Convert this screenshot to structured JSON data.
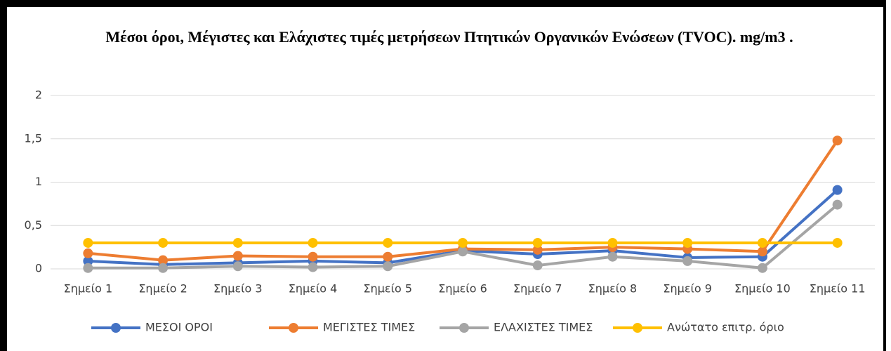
{
  "chart_data": {
    "type": "line",
    "title": "Μέσοι όροι,  Μέγιστες και  Ελάχιστες τιμές μετρήσεων Πτητικών  Οργανικών Ενώσεων  (TVOC). mg/m3 .",
    "categories": [
      "Σημείο 1",
      "Σημείο 2",
      "Σημείο 3",
      "Σημείο 4",
      "Σημείο 5",
      "Σημείο 6",
      "Σημείο 7",
      "Σημείο 8",
      "Σημείο 9",
      "Σημείο 10",
      "Σημείο 11"
    ],
    "series": [
      {
        "name": "ΜΕΣΟΙ ΟΡΟΙ",
        "color": "#4472c4",
        "values": [
          0.09,
          0.05,
          0.07,
          0.09,
          0.07,
          0.21,
          0.17,
          0.21,
          0.13,
          0.14,
          0.91
        ]
      },
      {
        "name": "ΜΕΓΙΣΤΕΣ ΤΙΜΕΣ",
        "color": "#ed7d31",
        "values": [
          0.18,
          0.1,
          0.15,
          0.14,
          0.14,
          0.23,
          0.22,
          0.25,
          0.23,
          0.2,
          1.48
        ]
      },
      {
        "name": "ΕΛΑΧΙΣΤΕΣ ΤΙΜΕΣ",
        "color": "#a5a5a5",
        "values": [
          0.01,
          0.01,
          0.03,
          0.02,
          0.03,
          0.2,
          0.04,
          0.14,
          0.09,
          0.01,
          0.74
        ]
      },
      {
        "name": "Ανώτατο επιτρ. όριο",
        "color": "#ffc000",
        "values": [
          0.3,
          0.3,
          0.3,
          0.3,
          0.3,
          0.3,
          0.3,
          0.3,
          0.3,
          0.3,
          0.3
        ]
      }
    ],
    "ylim": [
      0,
      2
    ],
    "yticks": [
      0,
      {
        "value": 0.5,
        "label": "0,5"
      },
      1,
      {
        "value": 1.5,
        "label": "1,5"
      },
      2
    ],
    "grid": true,
    "legend": "bottom"
  }
}
